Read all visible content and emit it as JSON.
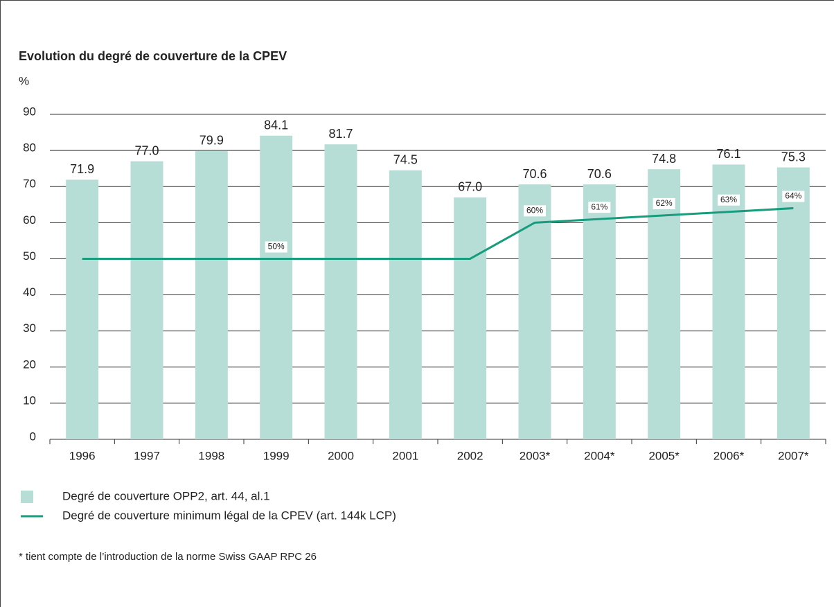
{
  "chart_data": {
    "type": "bar",
    "title": "Evolution du degré de couverture de la CPEV",
    "y_label": "%",
    "categories": [
      "1996",
      "1997",
      "1998",
      "1999",
      "2000",
      "2001",
      "2002",
      "2003*",
      "2004*",
      "2005*",
      "2006*",
      "2007*"
    ],
    "series": [
      {
        "name": "Degré de couverture OPP2, art. 44,  al.1",
        "type": "bar",
        "color": "#b7ded6",
        "values": [
          71.9,
          77.0,
          79.9,
          84.1,
          81.7,
          74.5,
          67.0,
          70.6,
          70.6,
          74.8,
          76.1,
          75.3
        ],
        "value_labels": [
          "71.9",
          "77.0",
          "79.9",
          "84.1",
          "81.7",
          "74.5",
          "67.0",
          "70.6",
          "70.6",
          "74.8",
          "76.1",
          "75.3"
        ]
      },
      {
        "name": "Degré de couverture minimum légal de la CPEV (art. 144k LCP)",
        "type": "line",
        "color": "#179c7d",
        "values": [
          50,
          50,
          50,
          50,
          50,
          50,
          50,
          60,
          61,
          62,
          63,
          64
        ],
        "value_labels": [
          null,
          null,
          null,
          "50%",
          null,
          null,
          null,
          "60%",
          "61%",
          "62%",
          "63%",
          "64%"
        ]
      }
    ],
    "ylim": [
      0,
      90
    ],
    "yticks": [
      0,
      10,
      20,
      30,
      40,
      50,
      60,
      70,
      80,
      90
    ],
    "grid": true,
    "legend": "bottom-left",
    "footnote": "* tient compte de l’introduction de la norme Swiss GAAP RPC 26"
  }
}
